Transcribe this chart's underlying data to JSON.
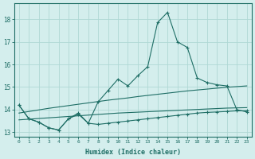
{
  "xlabel": "Humidex (Indice chaleur)",
  "x": [
    0,
    1,
    2,
    3,
    4,
    5,
    6,
    7,
    8,
    9,
    10,
    11,
    12,
    13,
    14,
    15,
    16,
    17,
    18,
    19,
    20,
    21,
    22,
    23
  ],
  "line_max": [
    14.2,
    13.6,
    13.45,
    13.2,
    13.1,
    13.6,
    13.85,
    13.4,
    14.35,
    14.85,
    15.35,
    15.05,
    15.5,
    15.9,
    17.85,
    18.3,
    17.0,
    16.75,
    15.4,
    15.2,
    15.1,
    15.05,
    14.0,
    13.9
  ],
  "line_min": [
    14.2,
    13.6,
    13.45,
    13.2,
    13.1,
    13.6,
    13.8,
    13.4,
    13.35,
    13.4,
    13.45,
    13.5,
    13.55,
    13.6,
    13.65,
    13.7,
    13.75,
    13.8,
    13.85,
    13.88,
    13.9,
    13.92,
    13.95,
    13.95
  ],
  "trend_high": [
    13.85,
    13.92,
    13.99,
    14.06,
    14.12,
    14.18,
    14.24,
    14.3,
    14.36,
    14.42,
    14.47,
    14.52,
    14.58,
    14.63,
    14.68,
    14.73,
    14.78,
    14.83,
    14.87,
    14.91,
    14.95,
    14.99,
    15.02,
    15.05
  ],
  "trend_low": [
    13.55,
    13.58,
    13.61,
    13.64,
    13.67,
    13.7,
    13.73,
    13.76,
    13.79,
    13.82,
    13.85,
    13.87,
    13.89,
    13.91,
    13.93,
    13.95,
    13.97,
    13.99,
    14.01,
    14.03,
    14.05,
    14.07,
    14.08,
    14.09
  ],
  "background_color": "#d4eeed",
  "grid_color": "#afd8d5",
  "line_color": "#1e6e65",
  "ylim": [
    12.8,
    18.7
  ],
  "yticks": [
    13,
    14,
    15,
    16,
    17,
    18
  ],
  "xlim": [
    -0.5,
    23.5
  ]
}
